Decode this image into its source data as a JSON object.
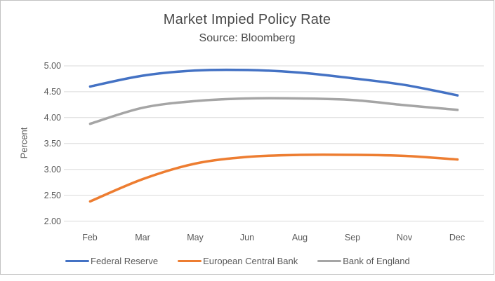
{
  "chart_data": {
    "type": "line",
    "title": "Market Impied Policy Rate",
    "subtitle": "Source: Bloomberg",
    "xlabel": "",
    "ylabel": "Percent",
    "categories": [
      "Feb",
      "Mar",
      "May",
      "Jun",
      "Aug",
      "Sep",
      "Nov",
      "Dec"
    ],
    "series": [
      {
        "name": "Federal Reserve",
        "color": "#4472C4",
        "values": [
          4.6,
          4.81,
          4.91,
          4.92,
          4.87,
          4.76,
          4.63,
          4.43
        ]
      },
      {
        "name": "European Central Bank",
        "color": "#ED7D31",
        "values": [
          2.38,
          2.81,
          3.11,
          3.24,
          3.28,
          3.28,
          3.26,
          3.19
        ]
      },
      {
        "name": "Bank of England",
        "color": "#A5A5A5",
        "values": [
          3.88,
          4.19,
          4.32,
          4.37,
          4.37,
          4.34,
          4.24,
          4.15
        ]
      }
    ],
    "ylim": [
      2.0,
      5.0
    ],
    "ytick_step": 0.5,
    "yticks": [
      "5.00",
      "4.50",
      "4.00",
      "3.50",
      "3.00",
      "2.50",
      "2.00"
    ],
    "grid": "horizontal",
    "gridline_color": "#D9D9D9",
    "legend_position": "bottom",
    "smooth_lines": true
  }
}
